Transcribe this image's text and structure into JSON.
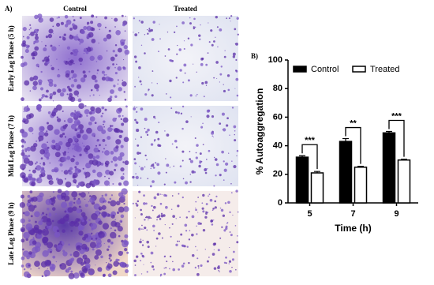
{
  "panel_a": {
    "label": "A)",
    "columns": [
      "Control",
      "Treated"
    ],
    "rows": [
      "Early Log Phase (5 h)",
      "Mid Log Phase (7 h)",
      "Late Log Phase (9 h)"
    ]
  },
  "chart_data": {
    "type": "bar",
    "panel_label": "B)",
    "x_label": "Time (h)",
    "y_label": "% Autoaggregation",
    "categories": [
      "5",
      "7",
      "9"
    ],
    "series": [
      {
        "name": "Control",
        "color": "#000000",
        "values": [
          32,
          43,
          49
        ],
        "errors": [
          1,
          2,
          1
        ]
      },
      {
        "name": "Treated",
        "color": "#ffffff",
        "values": [
          21,
          25,
          30
        ],
        "errors": [
          1,
          0.6,
          0.6
        ]
      }
    ],
    "significance": [
      "***",
      "**",
      "***"
    ],
    "ylim": [
      0,
      100
    ],
    "yticks": [
      0,
      20,
      40,
      60,
      80,
      100
    ],
    "legend": "top"
  }
}
